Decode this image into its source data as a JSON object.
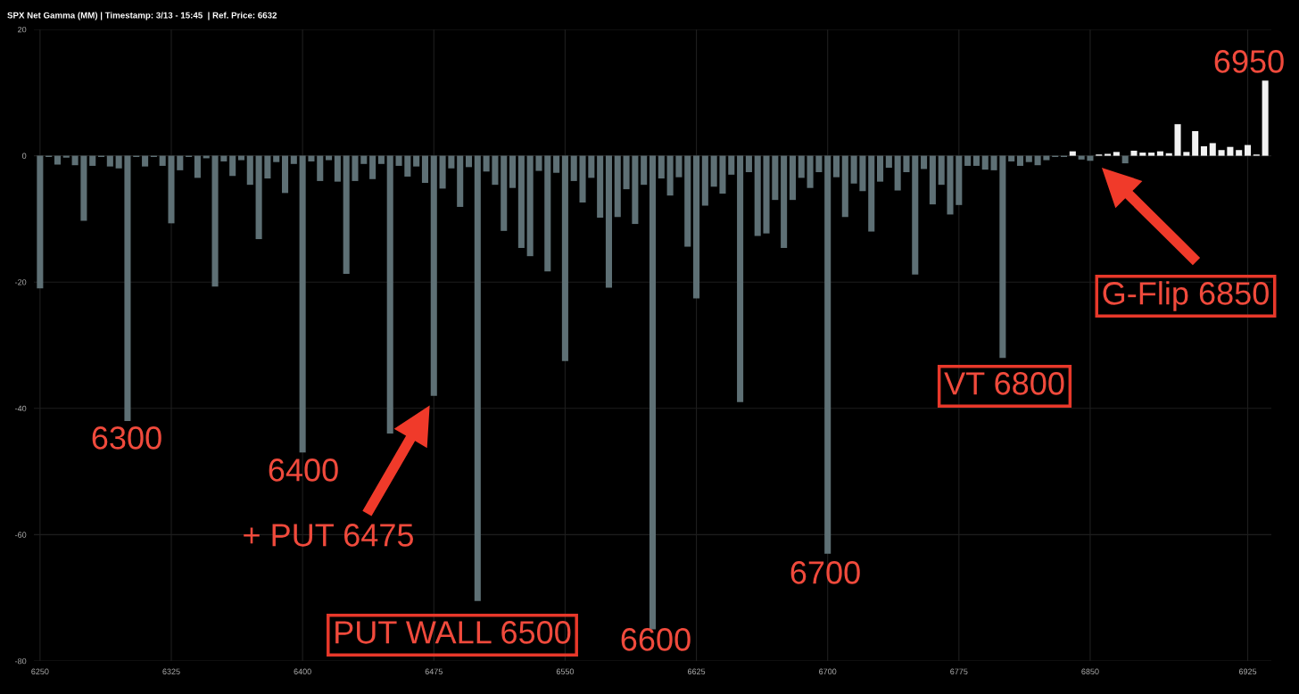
{
  "chart_data": {
    "type": "bar",
    "title": "SPX Net Gamma (MM) | Timestamp: 3/13 - 15:45  | Ref. Price: 6632",
    "categories": [
      "6250",
      null,
      null,
      null,
      null,
      null,
      null,
      null,
      null,
      null,
      null,
      null,
      null,
      null,
      null,
      "6325",
      null,
      null,
      null,
      null,
      null,
      null,
      null,
      null,
      null,
      null,
      null,
      null,
      null,
      null,
      "6400",
      null,
      null,
      null,
      null,
      null,
      null,
      null,
      null,
      null,
      null,
      null,
      null,
      null,
      null,
      "6475",
      null,
      null,
      null,
      null,
      null,
      null,
      null,
      null,
      null,
      null,
      null,
      null,
      null,
      null,
      "6550",
      null,
      null,
      null,
      null,
      null,
      null,
      null,
      null,
      null,
      null,
      null,
      null,
      null,
      null,
      "6625",
      null,
      null,
      null,
      null,
      null,
      null,
      null,
      null,
      null,
      null,
      null,
      null,
      null,
      null,
      "6700",
      null,
      null,
      null,
      null,
      null,
      null,
      null,
      null,
      null,
      null,
      null,
      null,
      null,
      null,
      "6775",
      null,
      null,
      null,
      null,
      null,
      null,
      null,
      null,
      null,
      null,
      null,
      null,
      null,
      null,
      "6850",
      null,
      null,
      null,
      null,
      null,
      null,
      null,
      null,
      null,
      null,
      null,
      null,
      null,
      null,
      null,
      null,
      null,
      "6925",
      null,
      null
    ],
    "values": [
      -21,
      -0.2,
      -1.4,
      -0.3,
      -1.5,
      -10.3,
      -1.6,
      -0.2,
      -1.7,
      -2.0,
      -42,
      -0.2,
      -1.7,
      -0.2,
      -1.6,
      -10.7,
      -2.3,
      -0.2,
      -3.5,
      -0.4,
      -20.7,
      -0.9,
      -3.2,
      -0.7,
      -4.6,
      -13.2,
      -3.6,
      -1.0,
      -5.9,
      -1.3,
      -47,
      -0.9,
      -4.0,
      -0.7,
      -4.1,
      -18.7,
      -4.0,
      -1.3,
      -3.7,
      -1.3,
      -44,
      -1.6,
      -3.3,
      -1.7,
      -4.3,
      -38,
      -5.2,
      -2.0,
      -8.1,
      -1.8,
      -70.5,
      -2.5,
      -4.6,
      -11.9,
      -5.1,
      -14.6,
      -15.9,
      -2.4,
      -18.3,
      -2.7,
      -32.5,
      -4.0,
      -7.4,
      -3.5,
      -9.8,
      -20.9,
      -9.7,
      -5.3,
      -10.8,
      -4.6,
      -75,
      -3.6,
      -6.3,
      -3.4,
      -14.4,
      -22.6,
      -7.9,
      -4.9,
      -6.0,
      -3.0,
      -39,
      -2.6,
      -12.7,
      -12.3,
      -7.0,
      -14.6,
      -7.0,
      -3.5,
      -5.1,
      -2.6,
      -63,
      -3.4,
      -9.7,
      -4.4,
      -5.6,
      -12.0,
      -4.1,
      -1.9,
      -5.5,
      -2.6,
      -18.8,
      -2.1,
      -7.7,
      -4.6,
      -9.3,
      -7.8,
      -1.6,
      -1.6,
      -2.2,
      -2.3,
      -32,
      -0.9,
      -1.6,
      -1.0,
      -1.5,
      -0.7,
      -0.2,
      -0.2,
      0.7,
      -0.6,
      -0.8,
      0.2,
      0.3,
      0.6,
      -1.2,
      0.8,
      0.5,
      0.5,
      0.7,
      0.4,
      5.0,
      0.6,
      3.9,
      1.5,
      2.0,
      0.9,
      1.4,
      0.9,
      1.7,
      0.2,
      11.9
    ],
    "colors": [
      "#5e7075",
      "#5e7075",
      "#5e7075",
      "#5e7075",
      "#5e7075",
      "#5e7075",
      "#5e7075",
      "#5e7075",
      "#5e7075",
      "#5e7075",
      "#5e7075",
      "#5e7075",
      "#5e7075",
      "#5e7075",
      "#5e7075",
      "#5e7075",
      "#5e7075",
      "#5e7075",
      "#5e7075",
      "#5e7075",
      "#5e7075",
      "#5e7075",
      "#5e7075",
      "#5e7075",
      "#5e7075",
      "#5e7075",
      "#5e7075",
      "#5e7075",
      "#5e7075",
      "#5e7075",
      "#5e7075",
      "#5e7075",
      "#5e7075",
      "#5e7075",
      "#5e7075",
      "#5e7075",
      "#5e7075",
      "#5e7075",
      "#5e7075",
      "#5e7075",
      "#5e7075",
      "#5e7075",
      "#5e7075",
      "#5e7075",
      "#5e7075",
      "#5e7075",
      "#5e7075",
      "#5e7075",
      "#5e7075",
      "#5e7075",
      "#5e7075",
      "#5e7075",
      "#5e7075",
      "#5e7075",
      "#5e7075",
      "#5e7075",
      "#5e7075",
      "#5e7075",
      "#5e7075",
      "#5e7075",
      "#5e7075",
      "#5e7075",
      "#5e7075",
      "#5e7075",
      "#5e7075",
      "#5e7075",
      "#5e7075",
      "#5e7075",
      "#5e7075",
      "#5e7075",
      "#5e7075",
      "#5e7075",
      "#5e7075",
      "#5e7075",
      "#5e7075",
      "#5e7075",
      "#5e7075",
      "#5e7075",
      "#5e7075",
      "#5e7075",
      "#5e7075",
      "#5e7075",
      "#5e7075",
      "#5e7075",
      "#5e7075",
      "#5e7075",
      "#5e7075",
      "#5e7075",
      "#5e7075",
      "#5e7075",
      "#5e7075",
      "#5e7075",
      "#5e7075",
      "#5e7075",
      "#5e7075",
      "#5e7075",
      "#5e7075",
      "#5e7075",
      "#5e7075",
      "#5e7075",
      "#5e7075",
      "#5e7075",
      "#5e7075",
      "#5e7075",
      "#5e7075",
      "#5e7075",
      "#5e7075",
      "#5e7075",
      "#5e7075",
      "#5e7075",
      "#5e7075",
      "#5e7075",
      "#5e7075",
      "#5e7075",
      "#5e7075",
      "#5e7075",
      "#5e7075",
      "#5e7075",
      "#f2f2f2",
      "#5e7075",
      "#5e7075",
      "#f2f2f2",
      "#f2f2f2",
      "#f2f2f2",
      "#5e7075",
      "#f2f2f2",
      "#f2f2f2",
      "#f2f2f2",
      "#f2f2f2",
      "#f2f2f2",
      "#f2f2f2",
      "#f2f2f2",
      "#f2f2f2",
      "#f2f2f2",
      "#f2f2f2",
      "#f2f2f2",
      "#f2f2f2",
      "#f2f2f2",
      "#f2f2f2",
      "#f2f2f2",
      "#f2f2f2"
    ],
    "ylim": [
      -80,
      20
    ],
    "yticks": [
      -80,
      -60,
      -40,
      -20,
      0,
      20
    ],
    "grid": true,
    "annotations": [
      "6300",
      "6400",
      "+ PUT 6475",
      "PUT WALL 6500",
      "6600",
      "6700",
      "VT 6800",
      "G-Flip 6850",
      "6950"
    ]
  }
}
